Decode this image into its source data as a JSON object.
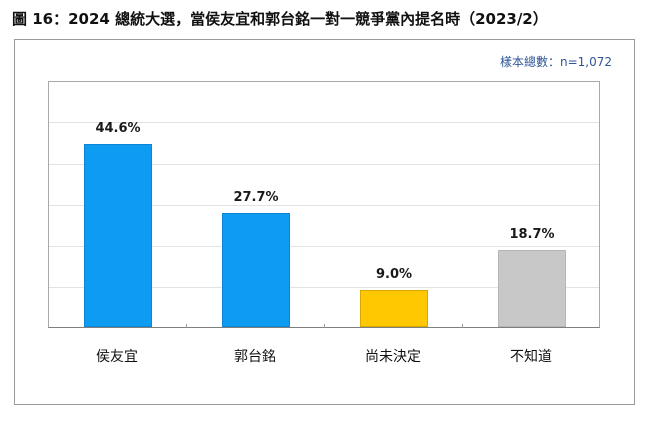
{
  "title": "圖 16：2024 總統大選，當侯友宜和郭台銘一對一競爭黨內提名時（2023/2）",
  "sample_size": "樣本總數：n=1,072",
  "chart_data": {
    "type": "bar",
    "title": "圖 16：2024 總統大選，當侯友宜和郭台銘一對一競爭黨內提名時（2023/2）",
    "subtitle": "樣本總數：n=1,072",
    "categories": [
      "侯友宜",
      "郭台銘",
      "尚未決定",
      "不知道"
    ],
    "values": [
      44.6,
      27.7,
      9.0,
      18.7
    ],
    "labels": [
      "44.6%",
      "27.7%",
      "9.0%",
      "18.7%"
    ],
    "colors": [
      "#0d9cf2",
      "#0d9cf2",
      "#ffc800",
      "#c8c8c8"
    ],
    "xlabel": "",
    "ylabel": "",
    "ylim": [
      0,
      60
    ],
    "grid": true,
    "legend": "none"
  }
}
